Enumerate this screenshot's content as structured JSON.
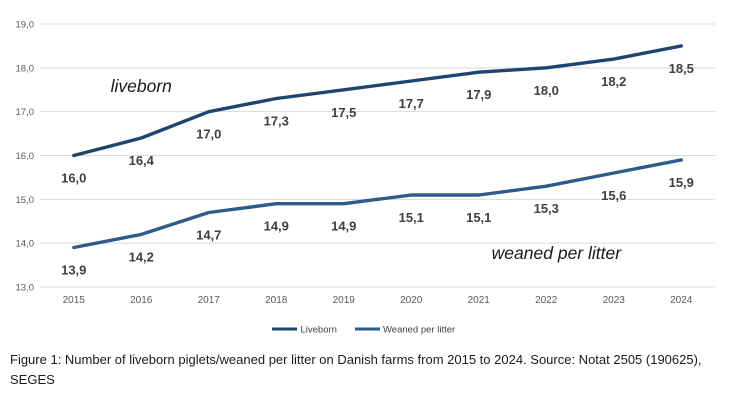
{
  "figure": {
    "caption": "Figure 1: Number of liveborn piglets/weaned per litter on Danish farms from 2015 to 2024. Source: Notat 2505 (190625), SEGES"
  },
  "chart_data": {
    "type": "line",
    "title": "",
    "xlabel": "",
    "ylabel": "",
    "categories": [
      "2015",
      "2016",
      "2017",
      "2018",
      "2019",
      "2020",
      "2021",
      "2022",
      "2023",
      "2024"
    ],
    "series": [
      {
        "name": "Liveborn",
        "values": [
          16.0,
          16.4,
          17.0,
          17.3,
          17.5,
          17.7,
          17.9,
          18.0,
          18.2,
          18.5
        ],
        "color": "#1F4470"
      },
      {
        "name": "Weaned per litter",
        "values": [
          13.9,
          14.2,
          14.7,
          14.9,
          14.9,
          15.1,
          15.1,
          15.3,
          15.6,
          15.9
        ],
        "color": "#2E5C8A"
      }
    ],
    "annotations": [
      {
        "text": "liveborn",
        "x_index": 1.0,
        "value": 17.59
      },
      {
        "text": "weaned per litter",
        "x_index": 7.15,
        "value": 13.78
      }
    ],
    "ylim": [
      13.0,
      19.0
    ],
    "ytick_step": 1.0,
    "decimal_separator": ",",
    "grid": true,
    "legend_position": "bottom",
    "data_labels": true,
    "styles": {
      "gridline_color": "#D9D9D9",
      "tick_label_color": "#595959",
      "data_label_color": "#3F3F3F",
      "annotation_color": "#1A1A1A",
      "legend_label_color": "#404040"
    }
  }
}
